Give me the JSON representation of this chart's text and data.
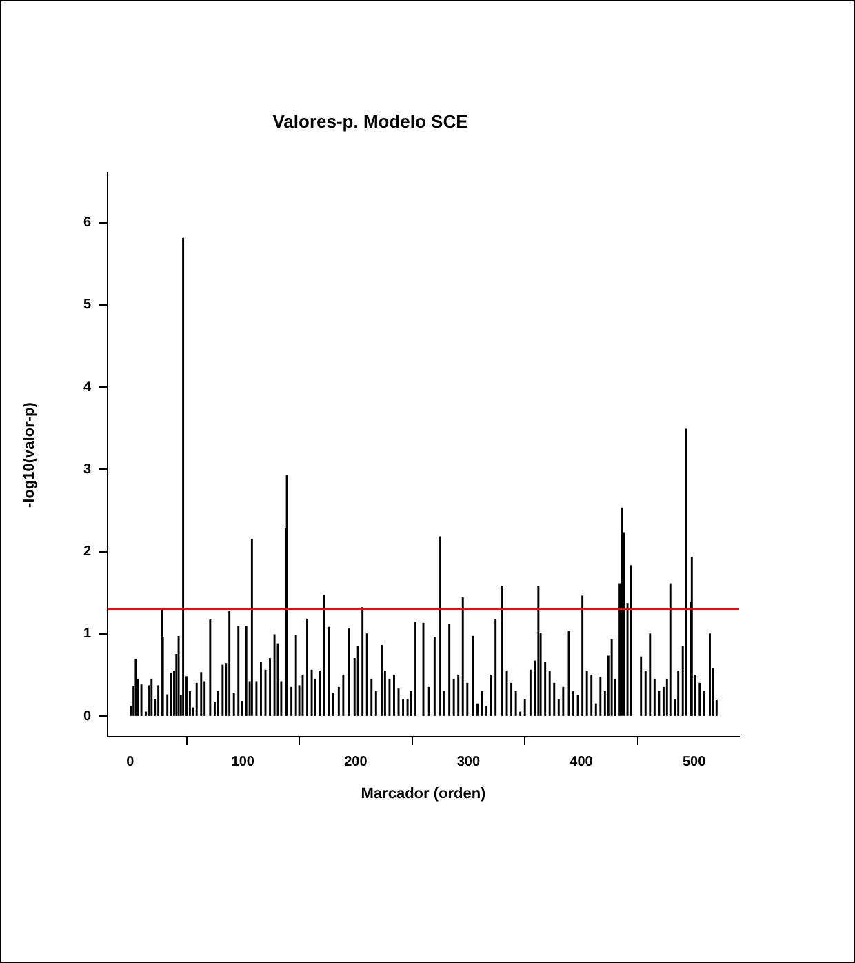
{
  "chart_data": {
    "type": "bar",
    "title": "Valores-p. Modelo SCE",
    "xlabel": "Marcador (orden)",
    "ylabel": "-log10(valor-p)",
    "x": [
      1,
      3,
      5,
      7,
      10,
      14,
      17,
      19,
      22,
      25,
      28,
      29,
      33,
      36,
      39,
      41,
      43,
      45,
      47,
      50,
      53,
      56,
      59,
      63,
      66,
      71,
      75,
      78,
      82,
      85,
      88,
      92,
      96,
      99,
      103,
      106,
      108,
      112,
      116,
      120,
      124,
      128,
      131,
      134,
      138,
      139,
      143,
      147,
      150,
      153,
      157,
      161,
      164,
      168,
      172,
      176,
      180,
      185,
      189,
      194,
      199,
      202,
      206,
      210,
      214,
      218,
      223,
      226,
      230,
      234,
      238,
      242,
      246,
      249,
      253,
      260,
      265,
      270,
      275,
      278,
      283,
      287,
      291,
      295,
      299,
      304,
      308,
      312,
      316,
      320,
      324,
      330,
      334,
      338,
      342,
      346,
      350,
      355,
      359,
      362,
      364,
      368,
      372,
      376,
      380,
      384,
      389,
      393,
      397,
      401,
      405,
      409,
      413,
      417,
      421,
      424,
      427,
      430,
      434,
      436,
      438,
      441,
      444,
      453,
      457,
      461,
      465,
      469,
      473,
      476,
      479,
      483,
      486,
      490,
      493,
      497,
      498,
      501,
      505,
      509,
      514,
      517,
      520
    ],
    "values": [
      0.12,
      0.36,
      0.69,
      0.45,
      0.38,
      0.05,
      0.37,
      0.45,
      0.2,
      0.37,
      1.29,
      0.96,
      0.26,
      0.52,
      0.55,
      0.75,
      0.97,
      0.25,
      5.81,
      0.48,
      0.3,
      0.1,
      0.4,
      0.53,
      0.42,
      1.17,
      0.17,
      0.3,
      0.62,
      0.64,
      1.27,
      0.28,
      1.09,
      0.18,
      1.09,
      0.42,
      2.15,
      0.42,
      0.65,
      0.56,
      0.7,
      0.99,
      0.88,
      0.42,
      2.28,
      2.93,
      0.35,
      0.98,
      0.37,
      0.5,
      1.18,
      0.56,
      0.45,
      0.55,
      1.47,
      1.08,
      0.28,
      0.35,
      0.5,
      1.06,
      0.7,
      0.85,
      1.32,
      1.0,
      0.45,
      0.3,
      0.86,
      0.55,
      0.45,
      0.5,
      0.33,
      0.2,
      0.2,
      0.3,
      1.14,
      1.13,
      0.35,
      0.96,
      2.18,
      0.3,
      1.12,
      0.45,
      0.5,
      1.44,
      0.4,
      0.97,
      0.15,
      0.3,
      0.12,
      0.5,
      1.17,
      1.58,
      0.55,
      0.4,
      0.3,
      0.05,
      0.2,
      0.56,
      0.67,
      1.58,
      1.01,
      0.65,
      0.55,
      0.4,
      0.2,
      0.35,
      1.03,
      0.3,
      0.25,
      1.46,
      0.55,
      0.5,
      0.15,
      0.47,
      0.3,
      0.73,
      0.93,
      0.45,
      1.61,
      2.53,
      2.23,
      1.37,
      1.83,
      0.72,
      0.55,
      1.0,
      0.45,
      0.3,
      0.35,
      0.45,
      1.61,
      0.2,
      0.55,
      0.85,
      3.49,
      1.39,
      1.93,
      0.5,
      0.4,
      0.3,
      1.0,
      0.58,
      0.19
    ],
    "color": "#000000",
    "xlim": [
      -20,
      540
    ],
    "xticks": [
      0,
      100,
      200,
      300,
      400,
      500
    ],
    "ylim": [
      -0.25,
      6.6
    ],
    "yticks": [
      0,
      1,
      2,
      3,
      4,
      5,
      6
    ],
    "ref_lines": [
      {
        "axis": "y",
        "value": 1.3,
        "color": "#ff0000"
      }
    ],
    "grid": false,
    "legend": false
  }
}
